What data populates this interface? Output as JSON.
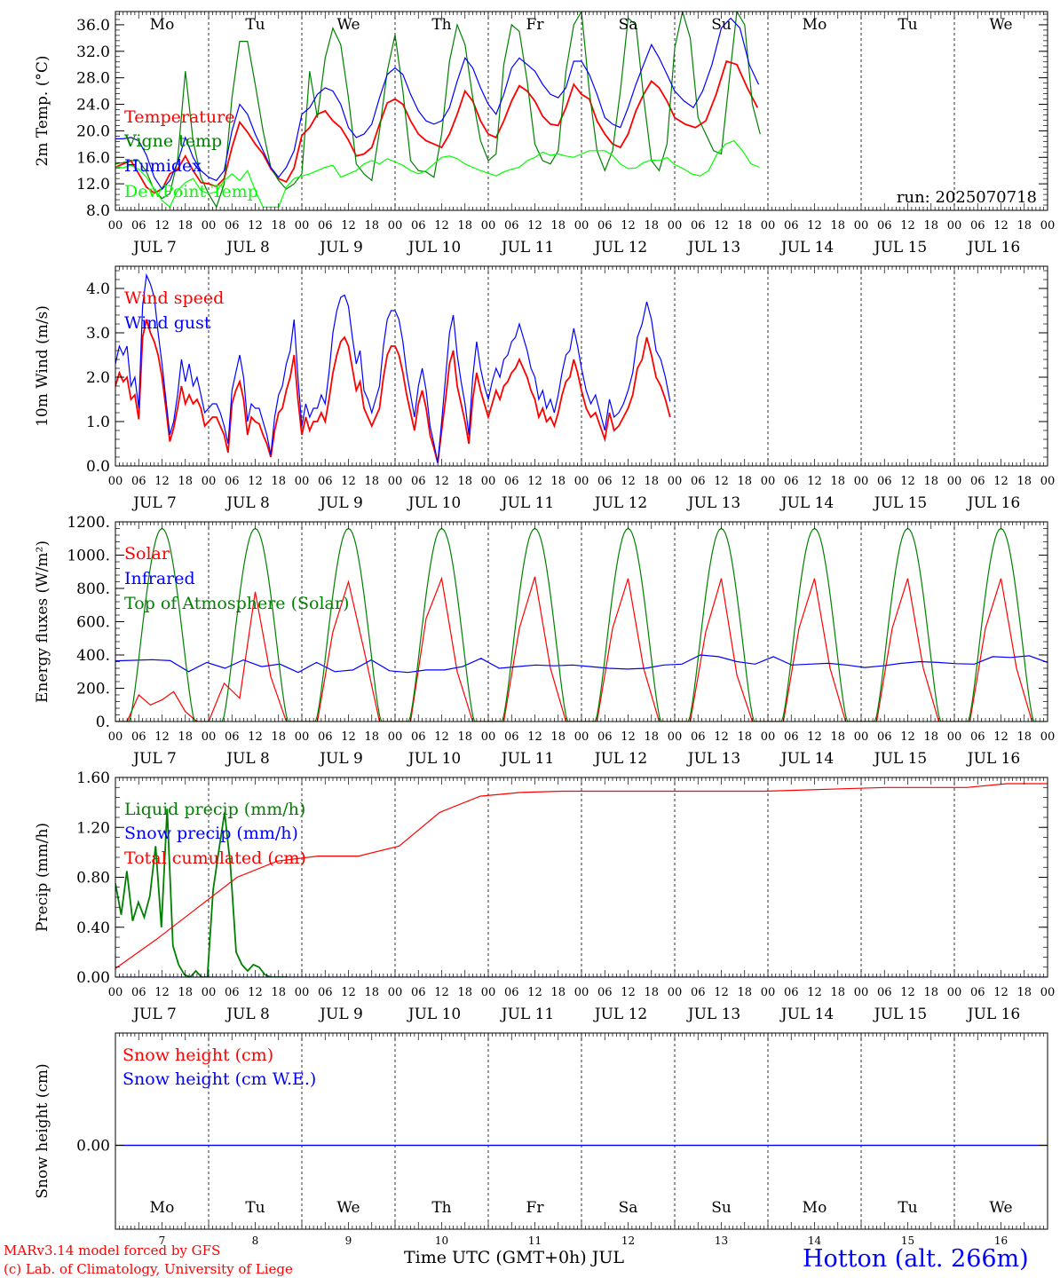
{
  "chart_data": [
    {
      "type": "line",
      "ylabel": "2m Temp. (°C)",
      "ylim": [
        8,
        38
      ],
      "yticks": [
        "8.0",
        "12.0",
        "16.0",
        "20.0",
        "24.0",
        "28.0",
        "32.0",
        "36.0"
      ],
      "weekdays": [
        "Mo",
        "Tu",
        "We",
        "Th",
        "Fr",
        "Sa",
        "Su",
        "Mo",
        "Tu",
        "We"
      ],
      "annotation": "run: 2025070718",
      "series": [
        {
          "name": "Temperature",
          "color": "#ff0000",
          "days": [
            [
              14.5,
              15,
              15.5,
              13.5,
              11.5,
              10.6,
              11.2,
              13.5,
              14.2,
              16.2,
              14,
              12.2
            ],
            [
              12,
              11.6,
              12.8,
              17.5,
              21.3,
              19.8,
              18,
              16.5,
              14.3,
              12.8,
              12.3,
              14.4
            ],
            [
              19.3,
              20.5,
              22.5,
              23,
              21.5,
              20.5,
              18.6,
              16.2,
              16.5,
              17.5,
              21,
              24.2
            ],
            [
              24.8,
              24,
              21.5,
              19.5,
              18.5,
              18,
              17.5,
              19.5,
              22.5,
              26,
              24.5,
              21.5
            ],
            [
              19.5,
              19,
              21.5,
              24.5,
              26.8,
              26,
              24.5,
              22.2,
              21,
              20.8,
              23.5,
              27
            ],
            [
              25.5,
              24.8,
              21.5,
              19.5,
              18,
              17.5,
              19.5,
              23,
              25.5,
              27.5,
              26.5,
              24.5
            ],
            [
              22,
              21,
              20.5,
              21.5,
              25.5,
              30.5,
              30,
              26.5,
              23.5
            ]
          ]
        },
        {
          "name": "Vigne temp",
          "color": "#008000",
          "days": [
            [
              15,
              15.2,
              15.5,
              15.5,
              13.8,
              11,
              9.8,
              10.5,
              15.5,
              29,
              18.5,
              13
            ],
            [
              10.5,
              8.5,
              12,
              25,
              33.5,
              33.5,
              27,
              20,
              14.5,
              12.5,
              11.2,
              12
            ],
            [
              13.5,
              29,
              22,
              31,
              35.5,
              33,
              25,
              15,
              13.5,
              12.5,
              20,
              29
            ],
            [
              34.5,
              26,
              15.5,
              14,
              13.8,
              13,
              19.5,
              30.5,
              36,
              33,
              25,
              18.5
            ],
            [
              15.5,
              16.5,
              30,
              36,
              35,
              27.5,
              18,
              15.5,
              15,
              17,
              29,
              36
            ],
            [
              38,
              26,
              17,
              14,
              17,
              26,
              37,
              36,
              25,
              15.5,
              14,
              18
            ],
            [
              32.5,
              38,
              34,
              22,
              19.5,
              17,
              16.5,
              27.5,
              38,
              36,
              24,
              19.5
            ]
          ]
        },
        {
          "name": "Humidex",
          "color": "#0000ff",
          "days": [
            [
              18.8,
              18.8,
              19,
              18.5,
              16.3,
              13,
              11.2,
              12.5,
              15.2,
              19,
              16,
              14
            ],
            [
              13,
              12.5,
              14,
              20,
              24,
              22.5,
              19.5,
              17,
              14.5,
              13,
              14.5,
              17
            ],
            [
              22.5,
              23.5,
              25.5,
              26.5,
              26,
              24,
              20.5,
              19,
              19.5,
              21,
              25,
              28.5
            ],
            [
              29.5,
              28.5,
              25.5,
              23,
              21.5,
              21,
              21.5,
              23.5,
              27.5,
              31,
              29.5,
              26.5
            ],
            [
              24,
              22.5,
              25.5,
              29.5,
              31,
              30,
              29,
              27,
              25.5,
              25,
              26.5,
              30.5
            ],
            [
              30.5,
              28.5,
              25.5,
              22,
              21,
              20.5,
              23.5,
              27,
              30,
              33,
              31,
              28.5
            ],
            [
              26,
              24.5,
              23.5,
              26,
              30,
              35.5,
              37,
              35.5,
              30,
              27
            ]
          ]
        },
        {
          "name": "DewPoint Temp",
          "color": "#00ff00",
          "days": [
            [
              14.6,
              14.4,
              14.8,
              14.2,
              13,
              11.2,
              9.5,
              8.5,
              11,
              12.2,
              12.8,
              11
            ],
            [
              10.5,
              10.8,
              12.5,
              13.5,
              12.5,
              14,
              11,
              8.5,
              8.5,
              8.5,
              11.5,
              12.8
            ],
            [
              13.2,
              13.5,
              14,
              14.5,
              14.8,
              13,
              13.5,
              14,
              15,
              15.5,
              15,
              15.8
            ],
            [
              15.3,
              14.8,
              14,
              13.5,
              14,
              15,
              16,
              16.2,
              15.8,
              15,
              14.5,
              14
            ],
            [
              13.6,
              13.2,
              13.8,
              14.2,
              14.5,
              15.5,
              16,
              16.8,
              16.3,
              16.5,
              16.2,
              16
            ],
            [
              16.5,
              17,
              17,
              17,
              16.3,
              15,
              14.3,
              14.4,
              15.2,
              15.6,
              15.5,
              16
            ],
            [
              14.9,
              14.3,
              13.5,
              13.2,
              14,
              16.5,
              18,
              18.5,
              17,
              15,
              14.5
            ]
          ]
        }
      ]
    },
    {
      "type": "line",
      "ylabel": "10m Wind (m/s)",
      "ylim": [
        0,
        4.5
      ],
      "yticks": [
        "0.0",
        "1.0",
        "2.0",
        "3.0",
        "4.0"
      ],
      "series": [
        {
          "name": "Wind speed",
          "color": "#ff0000",
          "days": [
            [
              1.8,
              2.1,
              1.9,
              2,
              1.5,
              1.6,
              1.05,
              2.9,
              3.3,
              3,
              2.8,
              2.5,
              2,
              1.3,
              0.55,
              0.85,
              1.3,
              1.8,
              1.4,
              1.6,
              1.4,
              1.5,
              1.3,
              0.9
            ],
            [
              1,
              1.1,
              1.1,
              0.9,
              0.7,
              0.3,
              1.4,
              1.7,
              1.9,
              1.5,
              0.7,
              1.1,
              1,
              0.95,
              0.7,
              0.5,
              0.2,
              0.8,
              1.2,
              1.3,
              1.7,
              2,
              2.5,
              1.5
            ],
            [
              0.7,
              1.1,
              0.8,
              1,
              1,
              1.2,
              1,
              1.5,
              2.1,
              2.5,
              2.8,
              2.9,
              2.7,
              2.2,
              1.7,
              1.9,
              1.3,
              1.1,
              0.9,
              1.1,
              1.3,
              2,
              2.5,
              2.7
            ],
            [
              2.7,
              2.5,
              2.1,
              1.6,
              1.2,
              0.8,
              1.4,
              1.7,
              1.3,
              0.7,
              0.4,
              0.07,
              0.8,
              1.5,
              2.3,
              2.6,
              1.8,
              1.4,
              1,
              0.5,
              1.5,
              2.1,
              1.7,
              1.4
            ],
            [
              1.1,
              1.4,
              1.7,
              1.5,
              1.8,
              1.9,
              2.1,
              2.2,
              2.4,
              2.2,
              2,
              1.7,
              1.5,
              1.1,
              1.3,
              1.0,
              1.1,
              0.9,
              1.2,
              1.6,
              1.9,
              2,
              2.4,
              2.1
            ],
            [
              1.7,
              1.3,
              1.1,
              1.2,
              0.9,
              0.6,
              1.2,
              0.8,
              0.9,
              1.1,
              1.3,
              1.6,
              2.2,
              2.4,
              2.9,
              2.5,
              2,
              1.8,
              1.5,
              1.1
            ]
          ]
        },
        {
          "name": "Wind gust",
          "color": "#0000ff",
          "days": [
            [
              2.3,
              2.7,
              2.5,
              2.7,
              1.8,
              2,
              1.3,
              3.6,
              4.3,
              4.1,
              3.8,
              3,
              2.3,
              1.5,
              0.7,
              1,
              1.6,
              2.4,
              1.9,
              2.3,
              1.8,
              2,
              1.6,
              1.2
            ],
            [
              1.3,
              1.4,
              1.4,
              1.2,
              0.9,
              0.5,
              1.7,
              2.1,
              2.5,
              2,
              1,
              1.4,
              1.3,
              1.3,
              1,
              0.7,
              0.25,
              1.1,
              1.6,
              1.8,
              2.3,
              2.6,
              3.3,
              2
            ],
            [
              0.9,
              1.4,
              1.1,
              1.3,
              1.3,
              1.6,
              1.4,
              2.1,
              3,
              3.5,
              3.8,
              3.85,
              3.6,
              2.9,
              2.3,
              2.6,
              1.7,
              1.5,
              1.2,
              1.5,
              1.8,
              2.7,
              3.3,
              3.5
            ],
            [
              3.5,
              3.3,
              2.8,
              2.1,
              1.6,
              1.1,
              1.8,
              2.2,
              1.7,
              0.9,
              0.5,
              0.07,
              1,
              2,
              3,
              3.4,
              2.5,
              1.9,
              1.4,
              0.7,
              2,
              2.8,
              2.2,
              1.8
            ],
            [
              1.5,
              1.9,
              2.2,
              2,
              2.4,
              2.5,
              2.8,
              2.9,
              3.2,
              2.9,
              2.6,
              2.2,
              2,
              1.5,
              1.7,
              1.3,
              1.5,
              1.2,
              1.6,
              2.1,
              2.5,
              2.6,
              3.1,
              2.7
            ],
            [
              2.2,
              1.7,
              1.4,
              1.6,
              1.2,
              0.8,
              1.5,
              1.1,
              1.2,
              1.4,
              1.7,
              2.1,
              2.9,
              3.2,
              3.7,
              3.3,
              2.6,
              2.4,
              2,
              1.45
            ]
          ]
        }
      ]
    },
    {
      "type": "line",
      "ylabel": "Energy fluxes (W/m²)",
      "ylim": [
        0,
        1200
      ],
      "yticks": [
        "0.",
        "200.",
        "400.",
        "600.",
        "800.",
        "1000.",
        "1200."
      ],
      "series": [
        {
          "name": "Solar",
          "color": "#ff0000",
          "days": [
            [
              0,
              0,
              160,
              100,
              130,
              180,
              60,
              0
            ],
            [
              0,
              230,
              140,
              780,
              270,
              0
            ],
            [
              0,
              0,
              540,
              840,
              430,
              0
            ],
            [
              0,
              0,
              620,
              860,
              300,
              0
            ],
            [
              0,
              0,
              560,
              870,
              320,
              0
            ],
            [
              0,
              0,
              560,
              860,
              320,
              0
            ],
            [
              0,
              0,
              540,
              860,
              280,
              0
            ],
            [
              0,
              0,
              560,
              860,
              320,
              0
            ],
            [
              0,
              0,
              560,
              860,
              320,
              0
            ],
            [
              0,
              0,
              560,
              860,
              320,
              0
            ]
          ]
        },
        {
          "name": "Infrared",
          "color": "#0000ff",
          "values": [
            365,
            368,
            372,
            366,
            300,
            355,
            320,
            370,
            330,
            345,
            295,
            355,
            300,
            310,
            370,
            305,
            295,
            310,
            310,
            330,
            380,
            320,
            330,
            340,
            335,
            340,
            330,
            320,
            315,
            320,
            340,
            345,
            400,
            390,
            360,
            345,
            390,
            340,
            345,
            350,
            340,
            325,
            335,
            350,
            360,
            355,
            348,
            345,
            390,
            385,
            395,
            355
          ]
        },
        {
          "name": "Top of Atmosphere (Solar)",
          "color": "#008000",
          "peak": 1160,
          "days": 10
        }
      ]
    },
    {
      "type": "line",
      "ylabel": "Precip (mm/h)",
      "ylim": [
        0,
        1.6
      ],
      "yticks": [
        "0.00",
        "0.40",
        "0.80",
        "1.20",
        "1.60"
      ],
      "series": [
        {
          "name": "Liquid precip (mm/h)",
          "color": "#008000",
          "values": [
            0.75,
            0.5,
            0.85,
            0.45,
            0.6,
            0.48,
            0.65,
            1.05,
            0.4,
            1.35,
            0.25,
            0.1,
            0.02,
            0,
            0.05,
            0,
            0,
            0.7,
            1.02,
            1.32,
            0.9,
            0.2,
            0.1,
            0.05,
            0.1,
            0.08,
            0.02,
            0,
            0,
            0,
            0
          ]
        },
        {
          "name": "Snow precip (mm/h)",
          "color": "#0000ff",
          "values": [
            0,
            0
          ]
        },
        {
          "name": "Total cumulated (cm)",
          "color": "#ff0000",
          "values": [
            0.07,
            0.3,
            0.55,
            0.8,
            0.93,
            0.97,
            0.97,
            1.05,
            1.32,
            1.45,
            1.48,
            1.49,
            1.49,
            1.49,
            1.49,
            1.49,
            1.49,
            1.5,
            1.51,
            1.52,
            1.52,
            1.52,
            1.55,
            1.55
          ]
        }
      ]
    },
    {
      "type": "line",
      "ylabel": "Snow height (cm)",
      "yticks": [
        "0.00"
      ],
      "series": [
        {
          "name": "Snow height (cm)",
          "color": "#ff0000",
          "values": [
            0,
            0
          ]
        },
        {
          "name": "Snow height (cm W.E.)",
          "color": "#0000ff",
          "values": [
            0,
            0
          ]
        }
      ]
    }
  ],
  "x_axis": {
    "hour_labels": [
      "00",
      "06",
      "12",
      "18"
    ],
    "date_labels": [
      "JUL  7",
      "JUL  8",
      "JUL  9",
      "JUL 10",
      "JUL 11",
      "JUL 12",
      "JUL 13",
      "JUL 14",
      "JUL 15",
      "JUL 16"
    ],
    "day_numbers": [
      "7",
      "8",
      "9",
      "10",
      "11",
      "12",
      "13",
      "14",
      "15",
      "16"
    ],
    "weekdays": [
      "Mo",
      "Tu",
      "We",
      "Th",
      "Fr",
      "Sa",
      "Su",
      "Mo",
      "Tu",
      "We"
    ],
    "weekend_color": "#ff0000",
    "xlabel": "Time UTC (GMT+0h) JUL"
  },
  "footer": {
    "model": "MARv3.14 model forced by GFS",
    "copyright": "(c) Lab. of Climatology, University of Liege",
    "station": "Hotton (alt. 266m)"
  }
}
